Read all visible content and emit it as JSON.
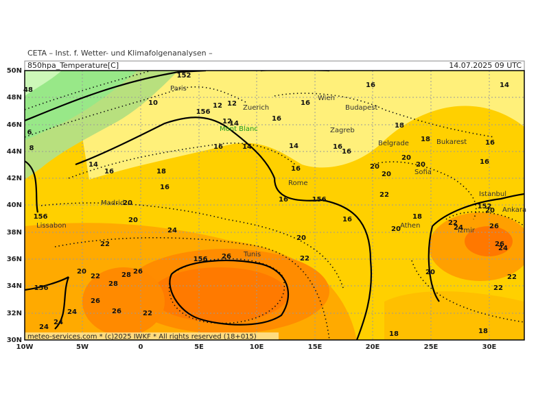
{
  "header": {
    "institute": "CETA – Inst. f. Wetter- und Klimafolgenanalysen –",
    "parameter": "850hpa_Temperature[C]",
    "datetime": "14.07.2025 09 UTC"
  },
  "footer": "meteo-services.com * (c)2025 IWKF * All rights reserved (18+015)",
  "xticks": [
    "10W",
    "5W",
    "0",
    "5E",
    "10E",
    "15E",
    "20E",
    "25E",
    "30E"
  ],
  "yticks": [
    "50N",
    "48N",
    "46N",
    "44N",
    "42N",
    "40N",
    "38N",
    "36N",
    "34N",
    "32N",
    "30N"
  ],
  "cities": [
    "Paris",
    "Zuerich",
    "Wien",
    "Budapest",
    "Mont Blanc",
    "Zagreb",
    "Belgrade",
    "Bukarest",
    "Sofia",
    "Rome",
    "Madrid",
    "Lissabon",
    "Istanbul",
    "Ankara",
    "Athen",
    "Izmir",
    "Tunis"
  ],
  "contour_labels": [
    "48",
    "6",
    "8",
    "10",
    "152",
    "156",
    "12",
    "12",
    "12",
    "14",
    "16",
    "14",
    "16",
    "16",
    "16",
    "14",
    "18",
    "18",
    "16",
    "16",
    "14",
    "16",
    "16",
    "16",
    "20",
    "20",
    "20",
    "20",
    "18",
    "16",
    "14",
    "16",
    "156",
    "20",
    "20",
    "16",
    "156",
    "16",
    "22",
    "18",
    "20",
    "24",
    "22",
    "20",
    "22",
    "26",
    "156",
    "20",
    "22",
    "26",
    "28",
    "28",
    "26",
    "26",
    "22",
    "24",
    "24",
    "24",
    "156",
    "20",
    "22",
    "22",
    "18",
    "18",
    "26",
    "26",
    "24",
    "22",
    "24",
    "152",
    "20"
  ]
}
